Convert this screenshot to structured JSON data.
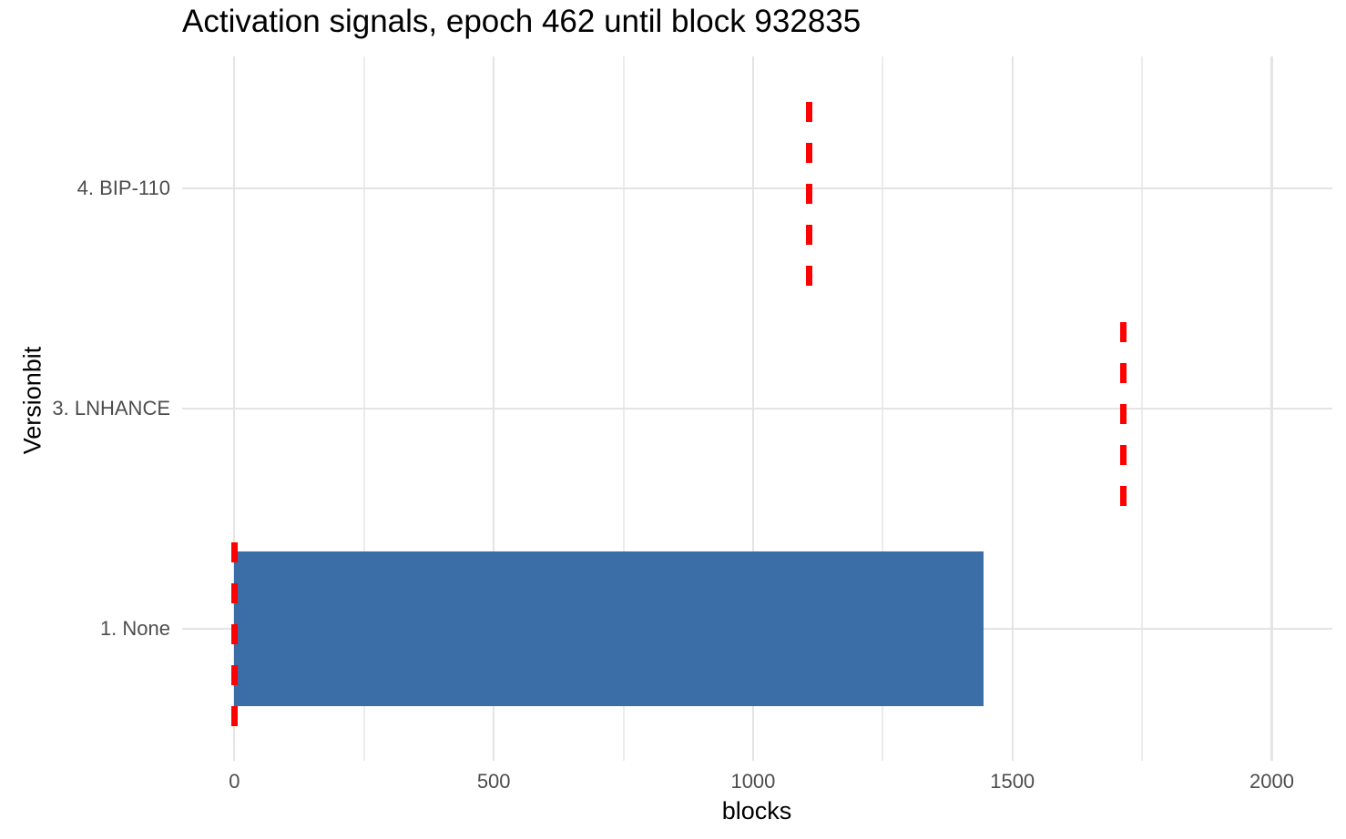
{
  "chart_data": {
    "type": "bar",
    "orientation": "horizontal",
    "title": "Activation signals, epoch 462 until block 932835",
    "xlabel": "blocks",
    "ylabel": "Versionbit",
    "categories": [
      "4. BIP-110",
      "3. LNHANCE",
      "1. None"
    ],
    "x_ticks": [
      0,
      500,
      1000,
      1500,
      2000
    ],
    "x_minor_ticks": [
      250,
      750,
      1250,
      1750
    ],
    "xlim": [
      -100.8,
      2116.8
    ],
    "grid": true,
    "legend_position": "none",
    "bars": [
      {
        "category": "1. None",
        "start": 0,
        "end": 1444
      }
    ],
    "dashed_threshold_lines": [
      {
        "category": "4. BIP-110",
        "x": 1108.8
      },
      {
        "category": "3. LNHANCE",
        "x": 1713.6
      },
      {
        "category": "1. None",
        "x": 0
      }
    ],
    "colors": {
      "bar": "#3b6ea6",
      "threshold": "#ff0000",
      "grid_major": "#e4e4e4",
      "grid_minor": "#ececec",
      "tick_label": "#4d4d4d",
      "axis_title": "#000000",
      "title": "#000000",
      "background": "#ffffff"
    }
  }
}
